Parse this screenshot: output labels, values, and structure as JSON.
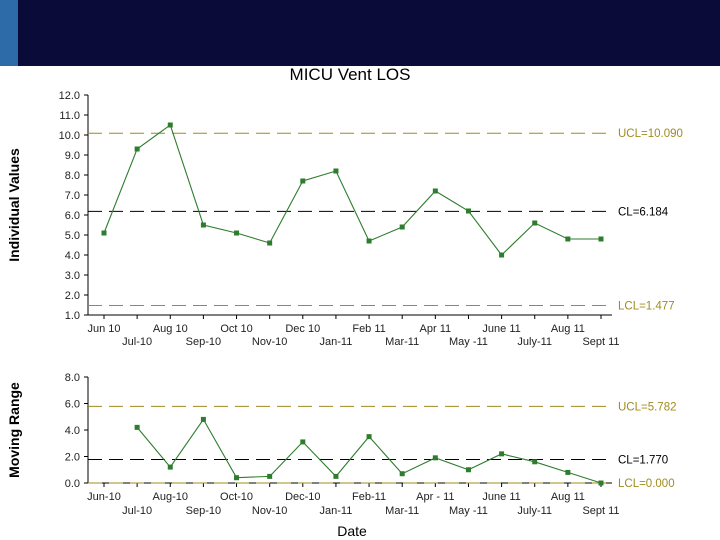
{
  "header": {
    "bar_color": "#0b0b3a",
    "accent_color": "#2d6aa8"
  },
  "chart_data": [
    {
      "type": "line",
      "title": "MICU Vent LOS",
      "ylabel": "Individual Values",
      "xlabel": "",
      "x_labels_upper": [
        "Jun 10",
        "Aug 10",
        "Oct 10",
        "Dec 10",
        "Feb 11",
        "Apr 11",
        "June 11",
        "Aug 11"
      ],
      "x_labels_lower": [
        "Jul-10",
        "Sep-10",
        "Nov-10",
        "Jan-11",
        "Mar-11",
        "May -11",
        "July-11",
        "Sept 11"
      ],
      "categories": [
        "Jun 10",
        "Jul-10",
        "Aug 10",
        "Sep-10",
        "Oct 10",
        "Nov-10",
        "Dec 10",
        "Jan-11",
        "Feb 11",
        "Mar-11",
        "Apr 11",
        "May -11",
        "June 11",
        "July-11",
        "Aug 11",
        "Sept 11"
      ],
      "series": [
        {
          "values": [
            5.1,
            9.3,
            10.5,
            5.5,
            5.1,
            4.6,
            7.7,
            8.2,
            4.7,
            5.4,
            7.2,
            6.2,
            4.0,
            5.6,
            4.8,
            4.8
          ]
        }
      ],
      "ylim": [
        1.0,
        12.0
      ],
      "yticks": [
        "12.0",
        "11.0",
        "10.0",
        "9.0",
        "8.0",
        "7.0",
        "6.0",
        "5.0",
        "4.0",
        "3.0",
        "2.0",
        "1.0"
      ],
      "control_lines": [
        {
          "label": "UCL=10.090",
          "value": 10.09,
          "color": "#a08c1e"
        },
        {
          "label": "CL=6.184",
          "value": 6.184,
          "color": "#000000"
        },
        {
          "label": "LCL=1.477",
          "value": 1.477,
          "color": "#a08c1e"
        }
      ],
      "series_color": "#2e7d2e"
    },
    {
      "type": "line",
      "title": "",
      "ylabel": "Moving Range",
      "xlabel": "Date",
      "x_labels_upper": [
        "Jun-10",
        "Aug-10",
        "Oct-10",
        "Dec-10",
        "Feb-11",
        "Apr - 11",
        "June 11",
        "Aug 11"
      ],
      "x_labels_lower": [
        "Jul-10",
        "Sep-10",
        "Nov-10",
        "Jan-11",
        "Mar-11",
        "May -11",
        "July-11",
        "Sept 11"
      ],
      "series": [
        {
          "values": [
            null,
            4.2,
            1.2,
            4.8,
            0.4,
            0.5,
            3.1,
            0.5,
            3.5,
            0.7,
            1.9,
            1.0,
            2.2,
            1.6,
            0.8,
            0.0
          ]
        }
      ],
      "ylim": [
        0.0,
        8.0
      ],
      "yticks": [
        "8.0",
        "6.0",
        "4.0",
        "2.0",
        "0.0"
      ],
      "control_lines": [
        {
          "label": "UCL=5.782",
          "value": 5.782,
          "color": "#a08c1e"
        },
        {
          "label": "CL=1.770",
          "value": 1.77,
          "color": "#000000"
        },
        {
          "label": "LCL=0.000",
          "value": 0.0,
          "color": "#a08c1e"
        }
      ],
      "series_color": "#2e7d2e"
    }
  ]
}
